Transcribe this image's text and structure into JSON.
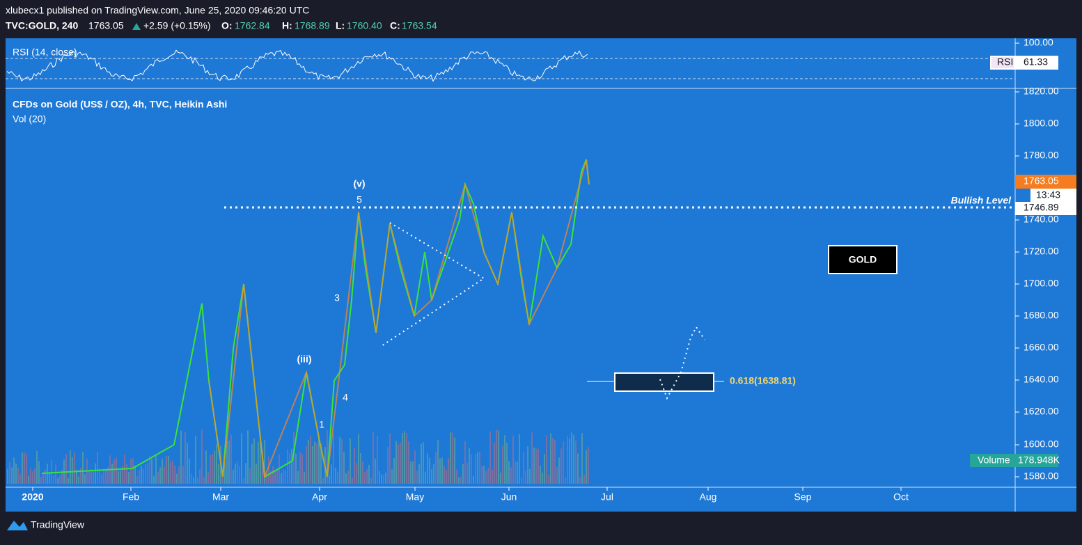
{
  "header": {
    "publisher": "xlubecx1 published on TradingView.com, June 25, 2020 09:46:20 UTC",
    "symbol": "TVC:GOLD, 240",
    "last": "1763.05",
    "change": "+2.59 (+0.15%)",
    "o_label": "O:",
    "o": "1762.84",
    "h_label": "H:",
    "h": "1768.89",
    "l_label": "L:",
    "l": "1760.40",
    "c_label": "C:",
    "c": "1763.54"
  },
  "rsi": {
    "title": "RSI (14, close)",
    "label": "RSI",
    "value": "61.33",
    "axis_label": "100.00"
  },
  "main": {
    "title": "CFDs on Gold (US$ / OZ), 4h, TVC, Heikin Ashi",
    "volume_title": "Vol (20)"
  },
  "price_axis": [
    "1820.00",
    "1800.00",
    "1780.00",
    "1740.00",
    "1720.00",
    "1700.00",
    "1680.00",
    "1660.00",
    "1640.00",
    "1620.00",
    "1600.00",
    "1580.00"
  ],
  "price_tags": {
    "last": "1763.05",
    "countdown": "13:43",
    "bullish": "1746.89"
  },
  "annotations": {
    "wave_v": "(v)",
    "wave_iii": "(iii)",
    "w5": "5",
    "w3": "3",
    "w4": "4",
    "w1": "1",
    "bullish_level": "Bullish Level",
    "gold": "GOLD",
    "fib": "0.618(1638.81)"
  },
  "volume_tag": {
    "label": "Volume",
    "value": "178.948K"
  },
  "time_axis": [
    "2020",
    "Feb",
    "Mar",
    "Apr",
    "May",
    "Jun",
    "Jul",
    "Aug",
    "Sep",
    "Oct"
  ],
  "footer": {
    "brand": "TradingView"
  }
}
